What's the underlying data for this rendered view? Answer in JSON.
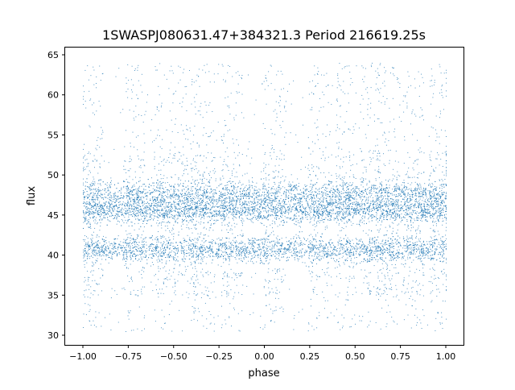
{
  "chart_data": {
    "type": "scatter",
    "title": "1SWASPJ080631.47+384321.3 Period 216619.25s",
    "xlabel": "phase",
    "ylabel": "flux",
    "xlim": [
      -1.1,
      1.1
    ],
    "ylim": [
      29,
      66
    ],
    "xticks": [
      "−1.00",
      "−0.75",
      "−0.50",
      "−0.25",
      "0.00",
      "0.25",
      "0.50",
      "0.75",
      "1.00"
    ],
    "xtick_values": [
      -1,
      -0.75,
      -0.5,
      -0.25,
      0,
      0.25,
      0.5,
      0.75,
      1
    ],
    "yticks": [
      "30",
      "35",
      "40",
      "45",
      "50",
      "55",
      "60",
      "65"
    ],
    "ytick_values": [
      30,
      35,
      40,
      45,
      50,
      55,
      60,
      65
    ],
    "grid": false,
    "marker_color": "#1f77b4",
    "x_range_data": [
      -1,
      1
    ],
    "flux_bands": [
      {
        "center": 47.5,
        "spread": 0.9
      },
      {
        "center": 45.5,
        "spread": 0.7
      },
      {
        "center": 40.8,
        "spread": 0.8
      }
    ],
    "outlier_range": [
      30.5,
      64
    ],
    "scattered_phases": [
      -0.95,
      -0.72,
      -0.55,
      -0.42,
      -0.33,
      -0.18,
      0.05,
      0.3,
      0.45,
      0.58,
      0.68,
      0.82,
      0.97
    ]
  }
}
